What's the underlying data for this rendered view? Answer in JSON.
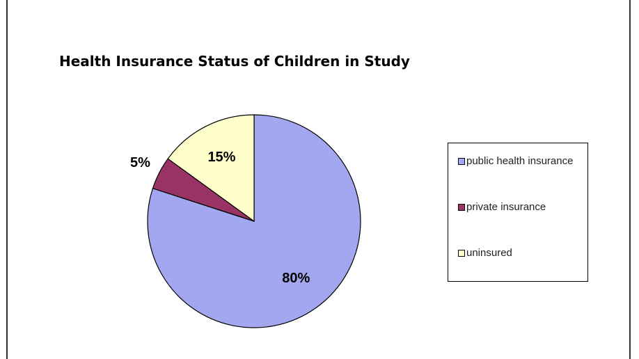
{
  "chart_data": {
    "type": "pie",
    "title": "Health Insurance Status of Children in Study",
    "categories": [
      "public health insurance",
      "private insurance",
      "uninsured"
    ],
    "values": [
      80,
      5,
      15
    ],
    "value_labels": [
      "80%",
      "5%",
      "15%"
    ],
    "colors": [
      "#a3a7f0",
      "#993366",
      "#ffffcc"
    ]
  }
}
